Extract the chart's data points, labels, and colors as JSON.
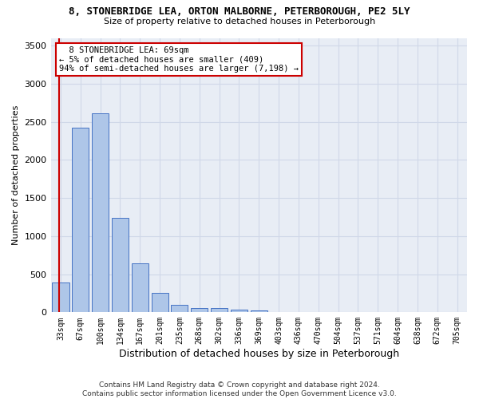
{
  "title_line1": "8, STONEBRIDGE LEA, ORTON MALBORNE, PETERBOROUGH, PE2 5LY",
  "title_line2": "Size of property relative to detached houses in Peterborough",
  "xlabel": "Distribution of detached houses by size in Peterborough",
  "ylabel": "Number of detached properties",
  "footer_line1": "Contains HM Land Registry data © Crown copyright and database right 2024.",
  "footer_line2": "Contains public sector information licensed under the Open Government Licence v3.0.",
  "annotation_line1": "  8 STONEBRIDGE LEA: 69sqm",
  "annotation_line2": "← 5% of detached houses are smaller (409)",
  "annotation_line3": "94% of semi-detached houses are larger (7,198) →",
  "bar_color": "#aec6e8",
  "bar_edge_color": "#4472c4",
  "highlight_color": "#cc0000",
  "categories": [
    "33sqm",
    "67sqm",
    "100sqm",
    "134sqm",
    "167sqm",
    "201sqm",
    "235sqm",
    "268sqm",
    "302sqm",
    "336sqm",
    "369sqm",
    "403sqm",
    "436sqm",
    "470sqm",
    "504sqm",
    "537sqm",
    "571sqm",
    "604sqm",
    "638sqm",
    "672sqm",
    "705sqm"
  ],
  "values": [
    390,
    2420,
    2610,
    1240,
    640,
    260,
    95,
    60,
    55,
    40,
    28,
    0,
    0,
    0,
    0,
    0,
    0,
    0,
    0,
    0,
    0
  ],
  "ylim": [
    0,
    3600
  ],
  "yticks": [
    0,
    500,
    1000,
    1500,
    2000,
    2500,
    3000,
    3500
  ],
  "grid_color": "#d0d8e8",
  "bg_color": "#e8edf5",
  "vline_x": -0.07
}
